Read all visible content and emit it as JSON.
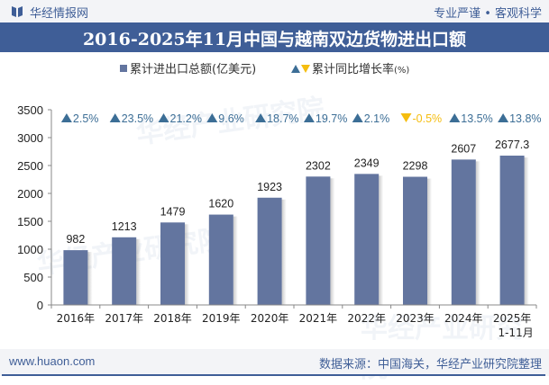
{
  "header": {
    "brand": "华经情报网",
    "slogan": "专业严谨 • 客观科学",
    "title": "2016-2025年11月中国与越南双边货物进出口额"
  },
  "legend": {
    "series1": "累计进出口总额(亿美元)",
    "series2": "累计同比增长率",
    "series2_unit": "(%)"
  },
  "footer": {
    "website": "www.huaon.com",
    "source": "数据来源：中国海关，华经产业研究院整理"
  },
  "watermark": {
    "text": "华经产业研究院",
    "url": "www.huaon.com"
  },
  "colors": {
    "bar": "#63759f",
    "up": "#3c6e96",
    "down": "#f5bd0f",
    "brand": "#3f5e97"
  },
  "chart_data": {
    "type": "bar",
    "title": "2016-2025年11月中国与越南双边货物进出口额",
    "categories": [
      "2016年",
      "2017年",
      "2018年",
      "2019年",
      "2020年",
      "2021年",
      "2022年",
      "2023年",
      "2024年",
      "2025年\n1-11月"
    ],
    "series": [
      {
        "name": "累计进出口总额(亿美元)",
        "values": [
          982,
          1213,
          1479,
          1620,
          1923,
          2302,
          2349,
          2298,
          2607,
          2677.3
        ],
        "labels": [
          "982",
          "1213",
          "1479",
          "1620",
          "1923",
          "2302",
          "2349",
          "2298",
          "2607",
          "2677.3"
        ]
      },
      {
        "name": "累计同比增长率(%)",
        "values": [
          2.5,
          23.5,
          21.2,
          9.6,
          18.7,
          19.7,
          2.1,
          -0.5,
          13.5,
          13.8
        ],
        "labels": [
          "2.5%",
          "23.5%",
          "21.2%",
          "9.6%",
          "18.7%",
          "19.7%",
          "2.1%",
          "-0.5%",
          "13.5%",
          "13.8%"
        ]
      }
    ],
    "ylim": [
      0,
      3500
    ],
    "yticks": [
      0,
      500,
      1000,
      1500,
      2000,
      2500,
      3000,
      3500
    ],
    "ytick_labels": [
      "0",
      "500",
      "1000",
      "1500",
      "2000",
      "2500",
      "3000",
      "3500"
    ],
    "xlabel": "",
    "ylabel": "",
    "grid": false,
    "legend_position": "top"
  }
}
